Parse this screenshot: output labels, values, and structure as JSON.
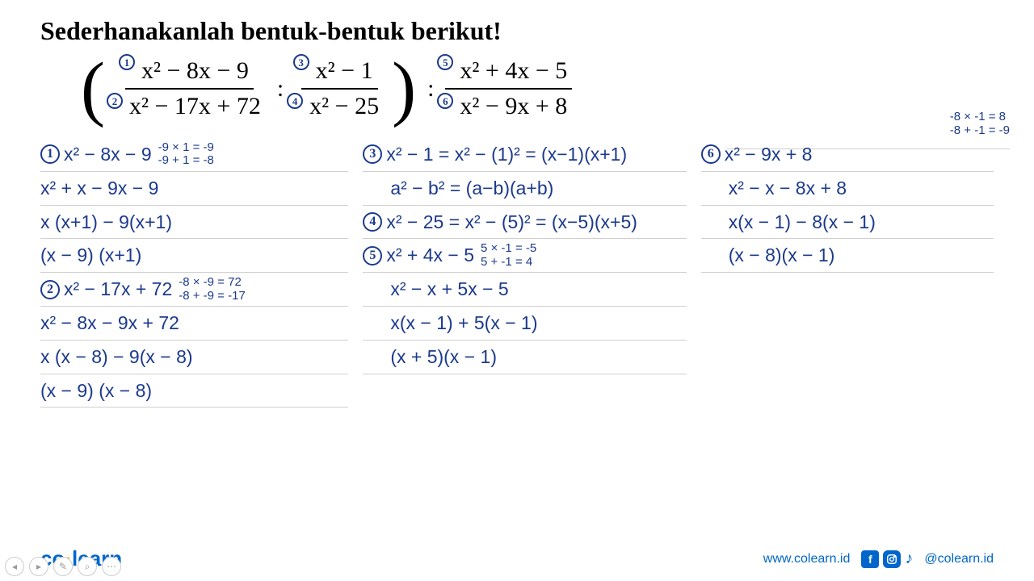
{
  "title": "Sederhanakanlah bentuk-bentuk berikut!",
  "problem": {
    "frac1_num": "x² − 8x − 9",
    "frac1_den": "x² − 17x + 72",
    "frac2_num": "x² − 1",
    "frac2_den": "x² − 25",
    "frac3_num": "x² + 4x − 5",
    "frac3_den": "x² − 9x + 8",
    "sep": ":",
    "labels": {
      "n1": "1",
      "n2": "2",
      "n3": "3",
      "n4": "4",
      "n5": "5",
      "n6": "6"
    }
  },
  "work": {
    "col1": [
      {
        "circle": "1",
        "text": "x² − 8x − 9",
        "hint1": "-9 × 1 = -9",
        "hint2": "-9 + 1 = -8"
      },
      {
        "text": "x² + x − 9x − 9"
      },
      {
        "text": "x (x+1) − 9(x+1)"
      },
      {
        "text": "(x − 9) (x+1)"
      },
      {
        "circle": "2",
        "text": "x² − 17x + 72",
        "hint1": "-8 × -9 = 72",
        "hint2": "-8 + -9 = -17"
      },
      {
        "text": "x² − 8x − 9x + 72"
      },
      {
        "text": "x (x − 8) − 9(x − 8)"
      },
      {
        "text": "(x − 9) (x − 8)"
      }
    ],
    "col2": [
      {
        "circle": "3",
        "text": "x² − 1 = x² − (1)² = (x−1)(x+1)"
      },
      {
        "text": "a² − b² = (a−b)(a+b)",
        "indent": true
      },
      {
        "circle": "4",
        "text": "x² − 25 = x² − (5)² = (x−5)(x+5)"
      },
      {
        "circle": "5",
        "text": "x² + 4x − 5",
        "hint1": "5 × -1 = -5",
        "hint2": "5 + -1 = 4"
      },
      {
        "text": "x² − x + 5x − 5",
        "indent": true
      },
      {
        "text": "x(x − 1) + 5(x − 1)",
        "indent": true
      },
      {
        "text": "(x + 5)(x − 1)",
        "indent": true
      }
    ],
    "col3": [
      {
        "circle": "6",
        "text": "x² − 9x + 8",
        "hinttop1": "-8 × -1 = 8",
        "hinttop2": "-8 + -1 = -9"
      },
      {
        "text": "x² − x − 8x + 8",
        "indent": true
      },
      {
        "text": "x(x − 1) − 8(x − 1)",
        "indent": true
      },
      {
        "text": "(x − 8)(x − 1)",
        "indent": true
      }
    ]
  },
  "footer": {
    "logo_co": "co",
    "logo_learn": "learn",
    "url": "www.colearn.id",
    "handle": "@colearn.id"
  },
  "colors": {
    "ink": "#1b3a8c",
    "brand": "#0066cc",
    "accent": "#ff9900"
  }
}
